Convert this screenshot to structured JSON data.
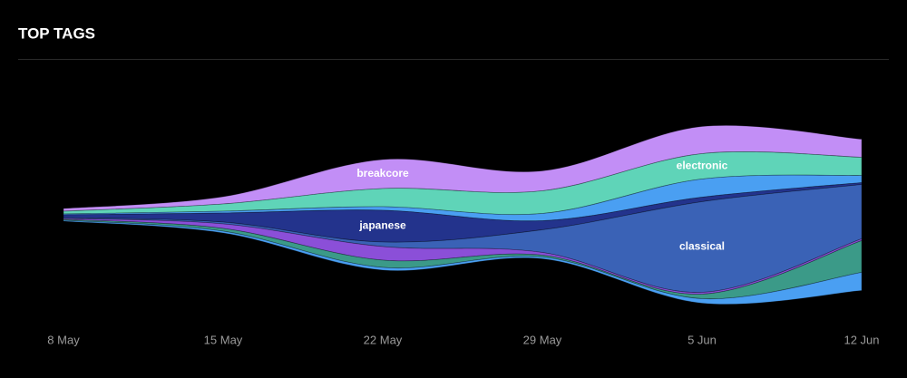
{
  "chart_data": {
    "type": "streamgraph",
    "title": "TOP TAGS",
    "x": [
      "8 May",
      "15 May",
      "22 May",
      "29 May",
      "5 Jun",
      "12 Jun"
    ],
    "series": [
      {
        "name": "breakcore",
        "color": "#c28ef6",
        "values": [
          3,
          8,
          32,
          22,
          30,
          20
        ]
      },
      {
        "name": "electronic",
        "color": "#5fd4b8",
        "values": [
          3,
          8,
          20,
          25,
          28,
          20
        ]
      },
      {
        "color": "#4a9ff2",
        "values": [
          1,
          2,
          4,
          8,
          20,
          8
        ]
      },
      {
        "name": "japanese",
        "color": "#23338c",
        "values": [
          3,
          10,
          35,
          10,
          5,
          2
        ]
      },
      {
        "name": "classical",
        "color": "#3a62b6",
        "values": [
          1,
          2,
          5,
          25,
          100,
          60
        ]
      },
      {
        "color": "#8b4fd8",
        "values": [
          1,
          5,
          15,
          3,
          2,
          2
        ]
      },
      {
        "color": "#3b9a88",
        "values": [
          1,
          3,
          8,
          2,
          5,
          35
        ]
      },
      {
        "color": "#4a9ff2",
        "values": [
          1,
          2,
          3,
          2,
          5,
          20
        ]
      }
    ]
  }
}
